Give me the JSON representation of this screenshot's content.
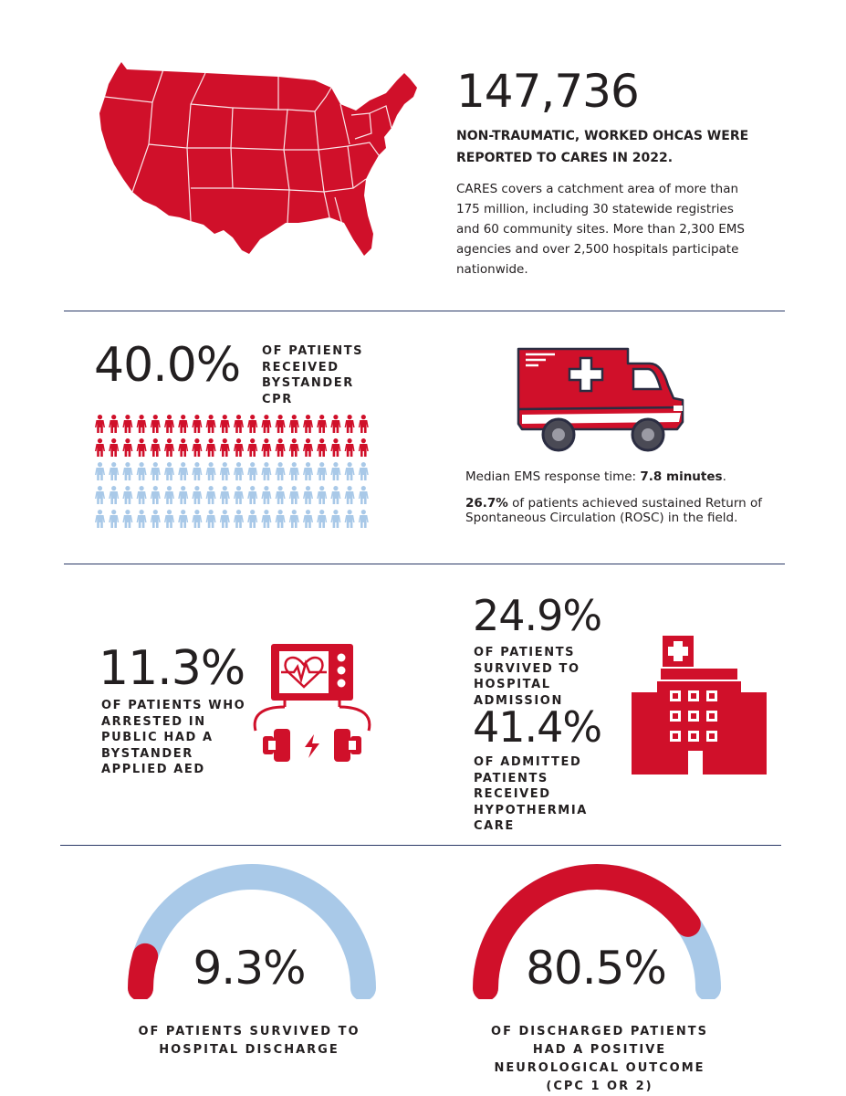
{
  "section1": {
    "count": "147,736",
    "headline": "NON-TRAUMATIC, WORKED OHCAS WERE REPORTED TO CARES IN 2022.",
    "description": "CARES covers a catchment area of more than 175 million, including 30 statewide registries and 60 community sites. More than 2,300 EMS agencies and over 2,500 hospitals participate nationwide."
  },
  "section2": {
    "bystander_pct": "40.0%",
    "bystander_label": "OF PATIENTS RECEIVED BYSTANDER CPR",
    "pictogram": {
      "rows": 5,
      "cols": 20,
      "filled_rows": 2,
      "filled_color": "#d0102a",
      "empty_color": "#a9c9e8"
    },
    "response_prefix": "Median EMS response time: ",
    "response_value": "7.8 minutes",
    "response_suffix": ".",
    "rosc_value": "26.7%",
    "rosc_text": " of patients achieved sustained Return of Spontaneous Circulation (ROSC) in the field."
  },
  "section3": {
    "aed_pct": "11.3%",
    "aed_label": "OF PATIENTS WHO ARRESTED IN PUBLIC HAD A BYSTANDER APPLIED AED",
    "admission_pct": "24.9%",
    "admission_label": "OF PATIENTS SURVIVED TO HOSPITAL ADMISSION",
    "hypothermia_pct": "41.4%",
    "hypothermia_label": "OF ADMITTED PATIENTS RECEIVED HYPOTHERMIA CARE"
  },
  "section4": {
    "discharge_pct": "9.3%",
    "discharge_value": 9.3,
    "discharge_label": "OF PATIENTS SURVIVED TO HOSPITAL DISCHARGE",
    "neuro_pct": "80.5%",
    "neuro_value": 80.5,
    "neuro_label": "OF DISCHARGED PATIENTS HAD A POSITIVE NEUROLOGICAL OUTCOME (CPC 1 OR 2)"
  },
  "colors": {
    "red": "#d0102a",
    "light_blue": "#a9c9e8",
    "navy": "#2b3a67",
    "dark": "#231f20"
  },
  "icons": [
    "us-map-icon",
    "ambulance-icon",
    "heart-monitor-icon",
    "defibrillator-paddles-icon",
    "hospital-icon"
  ]
}
